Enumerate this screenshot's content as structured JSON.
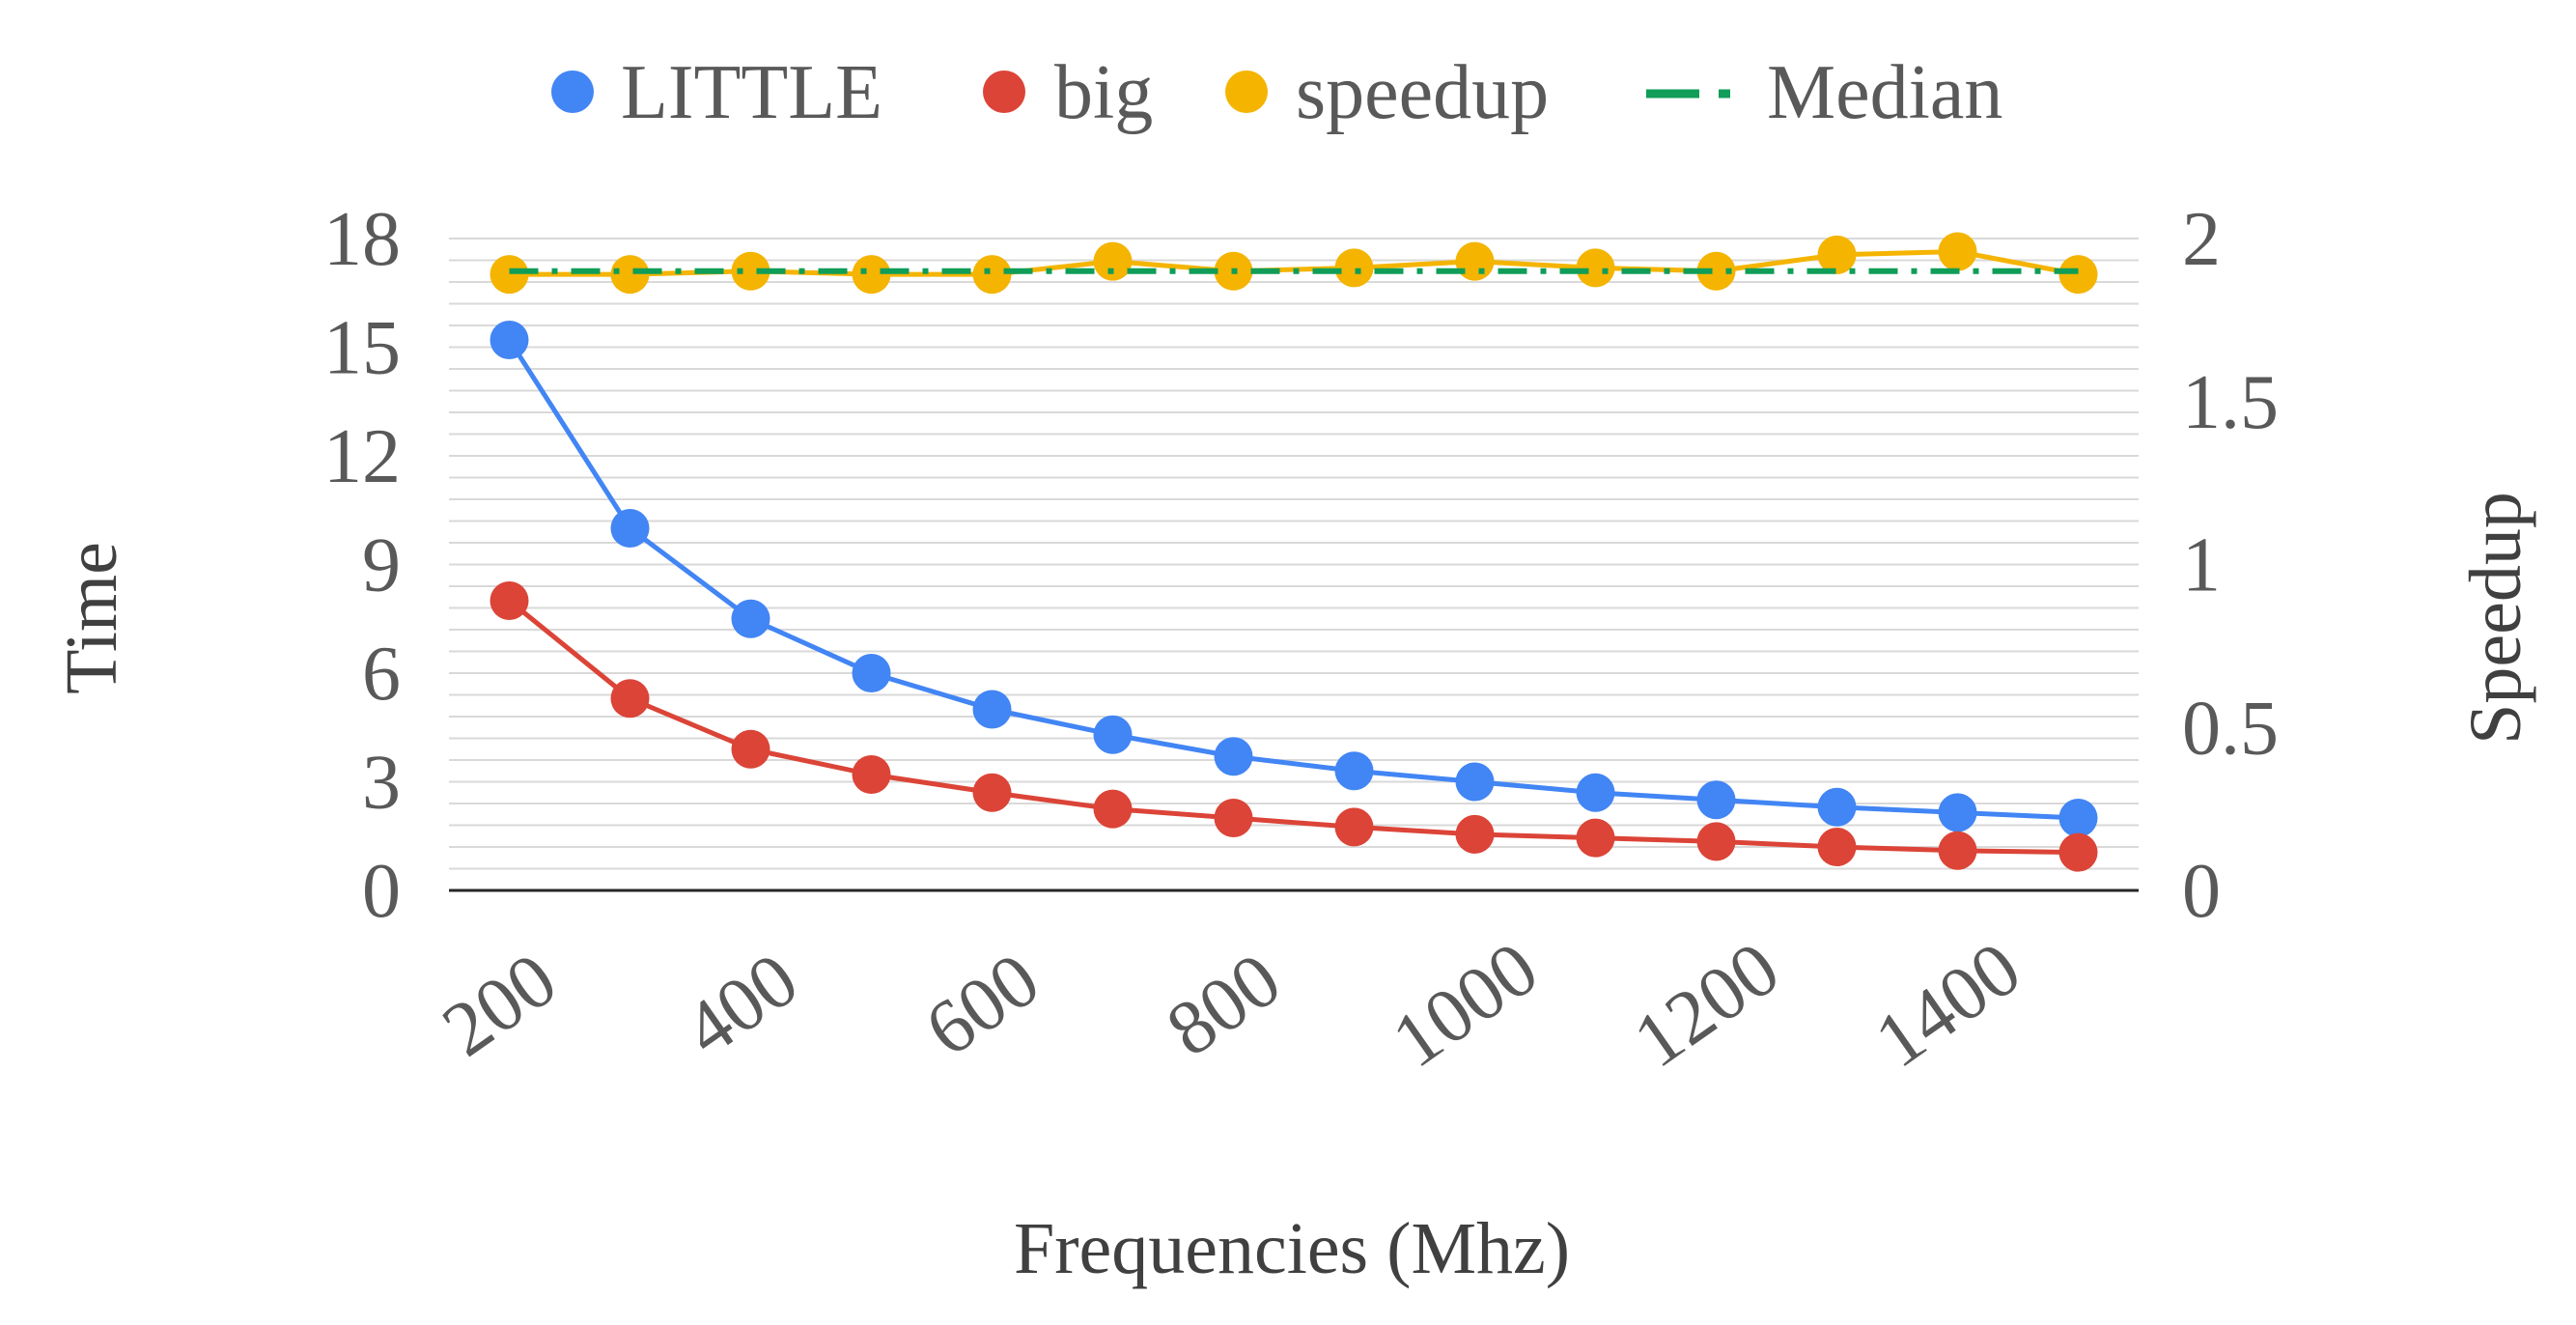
{
  "chart_data": {
    "type": "line",
    "title": "",
    "xlabel": "Frequencies (Mhz)",
    "ylabel": "Time",
    "y2label": "Speedup",
    "x": [
      200,
      300,
      400,
      500,
      600,
      700,
      800,
      900,
      1000,
      1100,
      1200,
      1300,
      1400,
      1500
    ],
    "x_tick_labels": [
      "200",
      "400",
      "600",
      "800",
      "1000",
      "1200",
      "1400"
    ],
    "ylim": [
      0,
      18
    ],
    "y_ticks": [
      0,
      3,
      6,
      9,
      12,
      15,
      18
    ],
    "y2lim": [
      0,
      2
    ],
    "y2_ticks": [
      "0",
      "0.5",
      "1",
      "1.5",
      "2"
    ],
    "grid": true,
    "legend_position": "top",
    "series": [
      {
        "name": "LITTLE",
        "axis": "left",
        "color": "#4285f4",
        "values": [
          15.2,
          10.0,
          7.5,
          6.0,
          5.0,
          4.3,
          3.7,
          3.3,
          3.0,
          2.7,
          2.5,
          2.3,
          2.15,
          2.0
        ]
      },
      {
        "name": "big",
        "axis": "left",
        "color": "#db4437",
        "values": [
          8.0,
          5.3,
          3.9,
          3.2,
          2.7,
          2.25,
          2.0,
          1.75,
          1.55,
          1.45,
          1.35,
          1.2,
          1.1,
          1.05
        ]
      },
      {
        "name": "speedup",
        "axis": "right",
        "color": "#f4b400",
        "values": [
          1.89,
          1.89,
          1.9,
          1.89,
          1.89,
          1.93,
          1.9,
          1.91,
          1.93,
          1.91,
          1.9,
          1.95,
          1.96,
          1.89
        ]
      },
      {
        "name": "Median",
        "axis": "right",
        "color": "#0f9d58",
        "style": "dash-dot",
        "values": [
          1.9,
          1.9,
          1.9,
          1.9,
          1.9,
          1.9,
          1.9,
          1.9,
          1.9,
          1.9,
          1.9,
          1.9,
          1.9,
          1.9
        ]
      }
    ]
  }
}
